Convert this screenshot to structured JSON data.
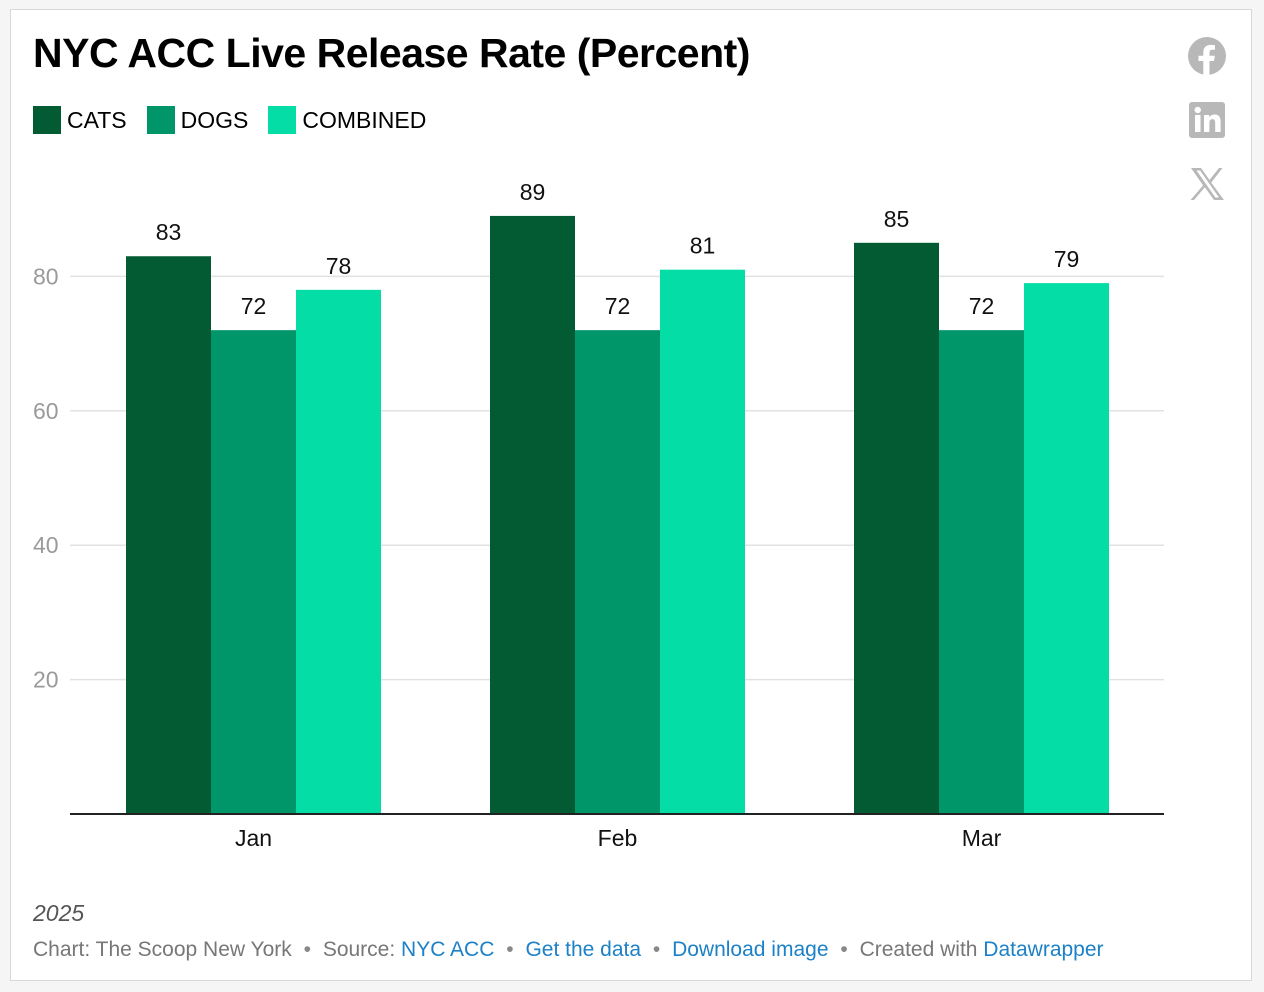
{
  "title": "NYC ACC Live Release Rate (Percent)",
  "legend": [
    {
      "label": "CATS",
      "color": "#025b32"
    },
    {
      "label": "DOGS",
      "color": "#00966a"
    },
    {
      "label": "COMBINED",
      "color": "#05dda6"
    }
  ],
  "share": {
    "icons": [
      "facebook-icon",
      "linkedin-icon",
      "x-icon"
    ],
    "color": "#b8b8b8"
  },
  "footer": {
    "year": "2025",
    "credit_prefix": "Chart: The Scoop New York",
    "source_label": "Source:",
    "source_link": "NYC ACC",
    "get_data": "Get the data",
    "download": "Download image",
    "created_with": "Created with",
    "datawrapper": "Datawrapper",
    "separator": "•"
  },
  "chart_data": {
    "type": "bar",
    "categories": [
      "Jan",
      "Feb",
      "Mar"
    ],
    "series": [
      {
        "name": "CATS",
        "values": [
          83,
          89,
          85
        ],
        "color": "#025b32"
      },
      {
        "name": "DOGS",
        "values": [
          72,
          72,
          72
        ],
        "color": "#00966a"
      },
      {
        "name": "COMBINED",
        "values": [
          78,
          81,
          79
        ],
        "color": "#05dda6"
      }
    ],
    "yticks": [
      20,
      40,
      60,
      80
    ],
    "ylim": [
      0,
      90
    ],
    "grid": true,
    "legend_position": "top-left",
    "title": "NYC ACC Live Release Rate (Percent)",
    "xlabel": "",
    "ylabel": ""
  }
}
